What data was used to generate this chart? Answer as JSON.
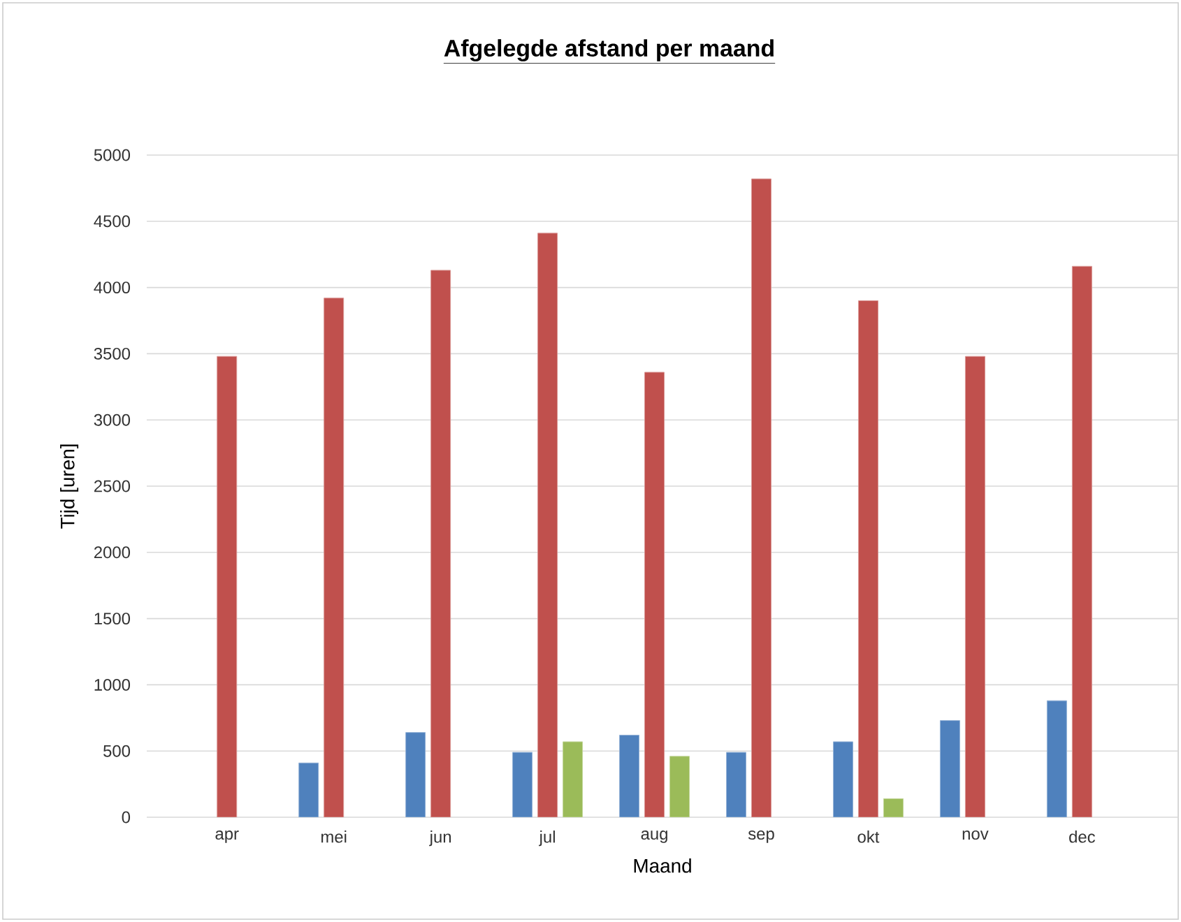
{
  "chart_data": {
    "type": "bar",
    "title": "Afgelegde afstand per maand",
    "xlabel": "Maand",
    "ylabel": "Tijd [uren]",
    "categories": [
      "apr",
      "mei",
      "jun",
      "jul",
      "aug",
      "sep",
      "okt",
      "nov",
      "dec"
    ],
    "series": [
      {
        "color": "#4f81bd",
        "values": [
          null,
          410,
          640,
          490,
          620,
          490,
          570,
          730,
          880
        ]
      },
      {
        "color": "#c0504d",
        "values": [
          3480,
          3920,
          4130,
          4410,
          3360,
          4820,
          3900,
          3480,
          4160
        ]
      },
      {
        "color": "#9bbb59",
        "values": [
          null,
          null,
          null,
          570,
          460,
          null,
          140,
          null,
          null
        ]
      }
    ],
    "ylim": [
      0,
      5000
    ],
    "yticks": [
      0,
      500,
      1000,
      1500,
      2000,
      2500,
      3000,
      3500,
      4000,
      4500,
      5000
    ],
    "grid": "y"
  }
}
